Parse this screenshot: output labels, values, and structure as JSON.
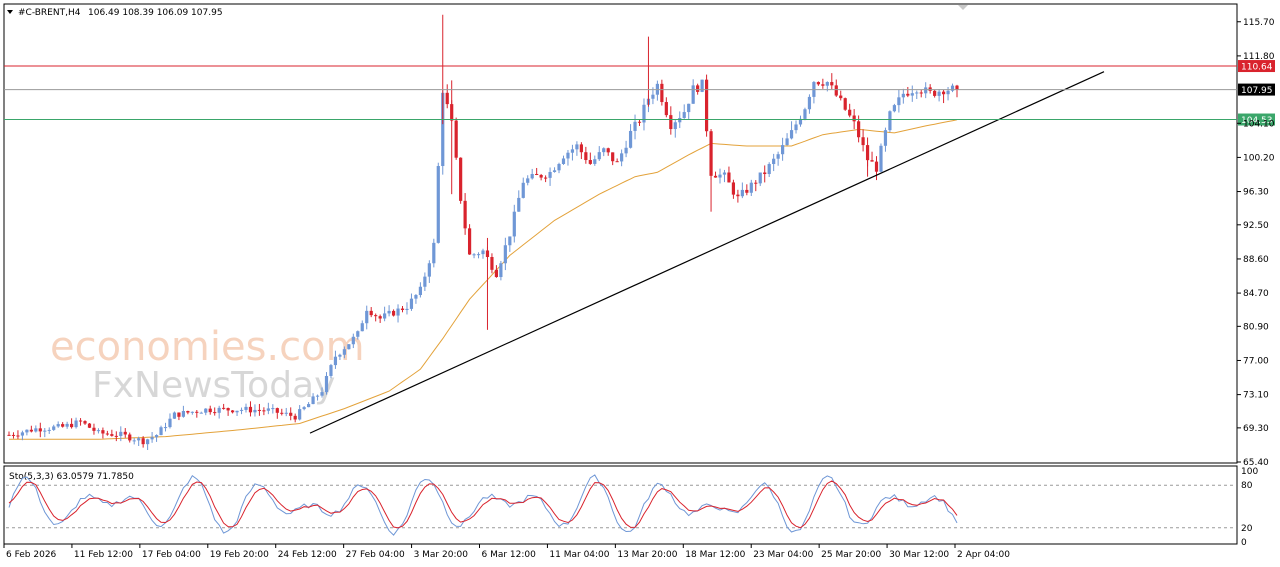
{
  "header": {
    "symbol": "#C-BRENT,H4",
    "ohlc": "106.49 108.39 106.09 107.95"
  },
  "watermark": {
    "line1": "economies.com",
    "line2": "FxNewsToday"
  },
  "stochastic": {
    "label": "Sto(5,3,3) 63.0579 71.7850",
    "scale_labels": [
      "100",
      "80",
      "20",
      "0"
    ],
    "levels": [
      80,
      20
    ]
  },
  "colors": {
    "bull": "#6f97d6",
    "bear": "#d9232d",
    "ma": "#e3a23a",
    "trendline": "#000000",
    "resistance": "#d9232d",
    "support": "#3aa66a",
    "current": "#000000",
    "stoch_main": "#6f97d6",
    "stoch_signal": "#d9232d"
  },
  "chart_data": {
    "type": "candlestick",
    "timeframe": "H4",
    "ylim": [
      65.4,
      117.5
    ],
    "y_ticks": [
      "115.70",
      "111.80",
      "104.10",
      "100.20",
      "96.30",
      "92.50",
      "88.60",
      "84.70",
      "80.90",
      "77.00",
      "73.10",
      "69.30",
      "65.40"
    ],
    "x_ticks": [
      "6 Feb 2026",
      "11 Feb 12:00",
      "17 Feb 04:00",
      "19 Feb 20:00",
      "24 Feb 12:00",
      "27 Feb 04:00",
      "3 Mar 20:00",
      "6 Mar 12:00",
      "11 Mar 04:00",
      "13 Mar 20:00",
      "18 Mar 12:00",
      "23 Mar 04:00",
      "25 Mar 20:00",
      "30 Mar 12:00",
      "2 Apr 04:00"
    ],
    "levels": [
      {
        "label": "110.64",
        "value": 110.64,
        "role": "resistance"
      },
      {
        "label": "107.95",
        "value": 107.95,
        "role": "current"
      },
      {
        "label": "104.53",
        "value": 104.53,
        "role": "support"
      }
    ],
    "trendline": {
      "start": [
        0.068,
        69.0
      ],
      "end": [
        0.235,
        109.2
      ]
    },
    "anchors": [
      [
        0,
        68.5
      ],
      [
        6,
        69.2
      ],
      [
        12,
        69.4
      ],
      [
        16,
        70.0
      ],
      [
        20,
        68.7
      ],
      [
        25,
        68.5
      ],
      [
        30,
        67.8
      ],
      [
        33,
        68.5
      ],
      [
        37,
        70.8
      ],
      [
        44,
        71.4
      ],
      [
        52,
        71.4
      ],
      [
        58,
        71.3
      ],
      [
        64,
        70.6
      ],
      [
        67,
        72.0
      ],
      [
        70,
        73.6
      ],
      [
        73,
        77.5
      ],
      [
        76,
        79.0
      ],
      [
        78,
        80.0
      ],
      [
        80,
        83.0
      ],
      [
        83,
        81.8
      ],
      [
        86,
        82.5
      ],
      [
        89,
        83.2
      ],
      [
        92,
        85.0
      ],
      [
        95,
        90.2
      ],
      [
        97,
        108.0
      ],
      [
        99,
        104.0
      ],
      [
        101,
        95.5
      ],
      [
        103,
        89.0
      ],
      [
        106,
        89.5
      ],
      [
        109,
        87.0
      ],
      [
        112,
        91.5
      ],
      [
        115,
        97.5
      ],
      [
        118,
        98.0
      ],
      [
        121,
        98.5
      ],
      [
        124,
        100.5
      ],
      [
        127,
        101.5
      ],
      [
        130,
        99.5
      ],
      [
        133,
        101.0
      ],
      [
        136,
        99.5
      ],
      [
        139,
        103.0
      ],
      [
        141,
        104.5
      ],
      [
        143,
        107.0
      ],
      [
        145,
        108.5
      ],
      [
        148,
        104.0
      ],
      [
        151,
        105.5
      ],
      [
        153,
        108.0
      ],
      [
        155,
        108.5
      ],
      [
        157,
        98.5
      ],
      [
        160,
        98.0
      ],
      [
        163,
        95.5
      ],
      [
        166,
        97.0
      ],
      [
        169,
        98.5
      ],
      [
        172,
        100.5
      ],
      [
        175,
        103.0
      ],
      [
        178,
        106.0
      ],
      [
        180,
        109.0
      ],
      [
        183,
        108.8
      ],
      [
        186,
        106.5
      ],
      [
        189,
        104.0
      ],
      [
        192,
        100.0
      ],
      [
        194,
        99.0
      ],
      [
        197,
        105.0
      ],
      [
        200,
        107.5
      ],
      [
        203,
        108.2
      ],
      [
        206,
        107.5
      ],
      [
        209,
        108.0
      ],
      [
        212,
        107.95
      ]
    ],
    "ma_anchors": [
      [
        0,
        68.0
      ],
      [
        20,
        68.0
      ],
      [
        35,
        68.3
      ],
      [
        50,
        69.0
      ],
      [
        65,
        69.8
      ],
      [
        75,
        71.5
      ],
      [
        85,
        73.5
      ],
      [
        92,
        76.0
      ],
      [
        97,
        79.5
      ],
      [
        103,
        84.0
      ],
      [
        112,
        89.0
      ],
      [
        122,
        93.0
      ],
      [
        132,
        96.0
      ],
      [
        140,
        98.0
      ],
      [
        145,
        98.5
      ],
      [
        152,
        100.5
      ],
      [
        157,
        101.8
      ],
      [
        165,
        101.5
      ],
      [
        175,
        101.5
      ],
      [
        182,
        102.8
      ],
      [
        190,
        103.4
      ],
      [
        198,
        103.0
      ],
      [
        205,
        103.8
      ],
      [
        212,
        104.5
      ]
    ],
    "candle_count": 213
  }
}
